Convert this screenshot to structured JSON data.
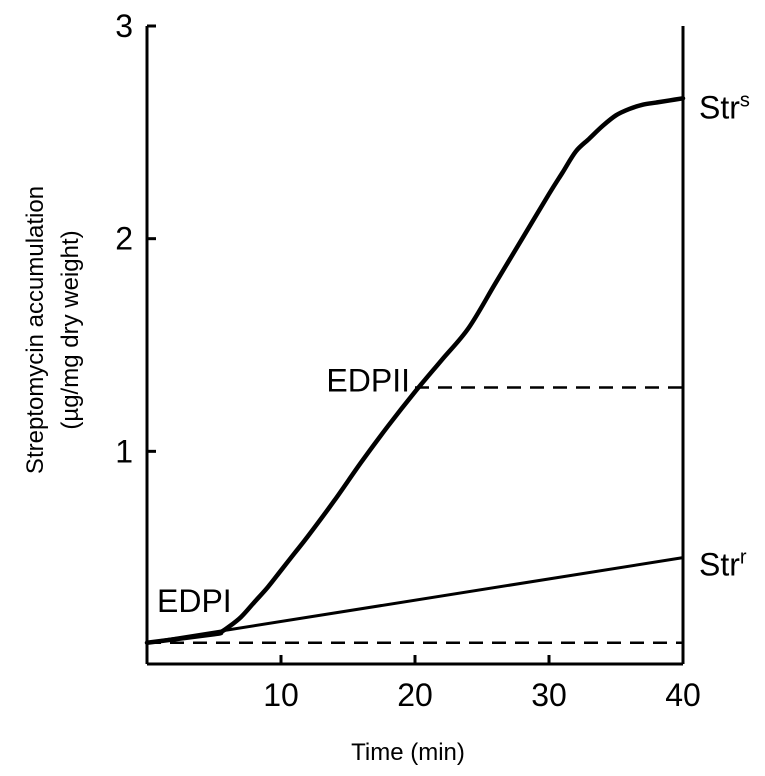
{
  "chart_data": {
    "type": "line",
    "xlabel": "Time (min)",
    "ylabel_lines": [
      "Streptomycin accumulation",
      "(µg/mg dry weight)"
    ],
    "xlim": [
      0,
      40
    ],
    "ylim": [
      0,
      3
    ],
    "x_ticks": [
      10,
      20,
      30,
      40
    ],
    "y_ticks": [
      1,
      2,
      3
    ],
    "grid": false,
    "series": [
      {
        "name": "Str",
        "superscript": "s",
        "style": "dotted-thick",
        "color": "#000000",
        "x": [
          0,
          5,
          5.5,
          6,
          7,
          8,
          9,
          10,
          11,
          12,
          14,
          16,
          18,
          20,
          22,
          24,
          26,
          28,
          30,
          31,
          32,
          33,
          34,
          35,
          36,
          37,
          38,
          39,
          40
        ],
        "y": [
          0.1,
          0.14,
          0.15,
          0.17,
          0.22,
          0.29,
          0.36,
          0.44,
          0.52,
          0.6,
          0.77,
          0.95,
          1.12,
          1.28,
          1.43,
          1.58,
          1.79,
          2.0,
          2.21,
          2.31,
          2.41,
          2.47,
          2.53,
          2.58,
          2.61,
          2.63,
          2.64,
          2.65,
          2.66
        ]
      },
      {
        "name": "Str",
        "superscript": "r",
        "style": "solid",
        "color": "#000000",
        "x": [
          0,
          40
        ],
        "y": [
          0.1,
          0.5
        ]
      }
    ],
    "reference_lines": [
      {
        "style": "dashed",
        "x": [
          20,
          40
        ],
        "y": [
          1.3,
          1.3
        ]
      },
      {
        "style": "dashed",
        "x": [
          0,
          40
        ],
        "y": [
          0.1,
          0.1
        ]
      }
    ],
    "annotations": [
      {
        "text": "EDPII",
        "x": 20,
        "y": 1.3
      },
      {
        "text": "EDPI",
        "x": 5,
        "y": 0.15
      }
    ]
  }
}
